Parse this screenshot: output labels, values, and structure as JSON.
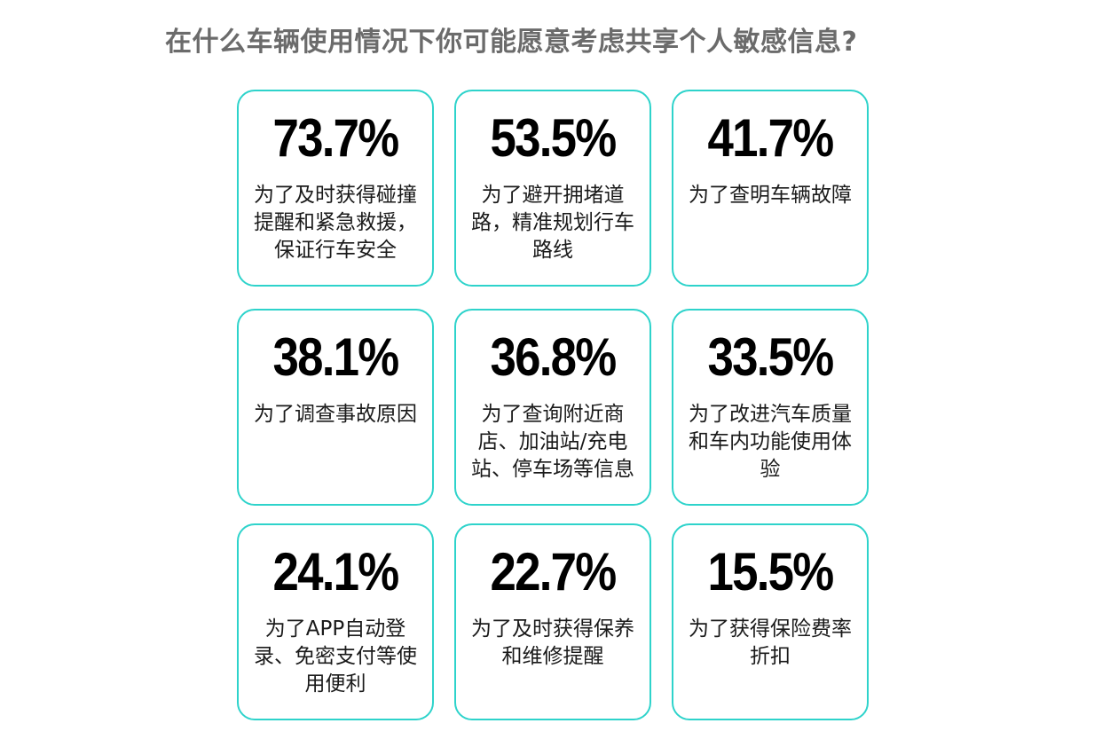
{
  "chart_data": {
    "type": "table",
    "title": "在什么车辆使用情况下你可能愿意考虑共享个人敏感信息?",
    "items": [
      {
        "value": 73.7,
        "label": "73.7%",
        "text": "为了及时获得碰撞提醒和紧急救援，保证行车安全"
      },
      {
        "value": 53.5,
        "label": "53.5%",
        "text": "为了避开拥堵道路，精准规划行车路线"
      },
      {
        "value": 41.7,
        "label": "41.7%",
        "text": "为了查明车辆故障"
      },
      {
        "value": 38.1,
        "label": "38.1%",
        "text": "为了调查事故原因"
      },
      {
        "value": 36.8,
        "label": "36.8%",
        "text": "为了查询附近商店、加油站/充电站、停车场等信息"
      },
      {
        "value": 33.5,
        "label": "33.5%",
        "text": "为了改进汽车质量和车内功能使用体验"
      },
      {
        "value": 24.1,
        "label": "24.1%",
        "text": "为了APP自动登录、免密支付等使用便利"
      },
      {
        "value": 22.7,
        "label": "22.7%",
        "text": "为了及时获得保养和维修提醒"
      },
      {
        "value": 15.5,
        "label": "15.5%",
        "text": "为了获得保险费率折扣"
      }
    ]
  },
  "colors": {
    "border": "#2ed3cb",
    "title": "#6b6b6b",
    "value": "#000000"
  }
}
